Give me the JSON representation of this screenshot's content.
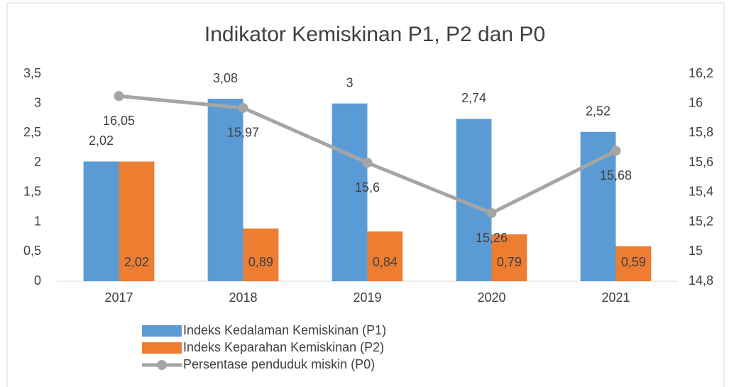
{
  "chart_data": {
    "type": "bar_line",
    "title": "Indikator Kemiskinan P1, P2 dan P0",
    "categories": [
      "2017",
      "2018",
      "2019",
      "2020",
      "2021"
    ],
    "series": [
      {
        "name": "Indeks Kedalaman Kemiskinan (P1)",
        "type": "bar",
        "color": "#5b9bd5",
        "values": [
          2.02,
          3.08,
          3,
          2.74,
          2.52
        ],
        "value_labels": [
          "2,02",
          "3,08",
          "3",
          "2,74",
          "2,52"
        ]
      },
      {
        "name": "Indeks Keparahan Kemiskinan (P2)",
        "type": "bar",
        "color": "#ed7d31",
        "values": [
          2.02,
          0.89,
          0.84,
          0.79,
          0.59
        ],
        "value_labels": [
          "2,02",
          "0,89",
          "0,84",
          "0,79",
          "0,59"
        ]
      },
      {
        "name": "Persentase penduduk miskin (P0)",
        "type": "line",
        "axis": "y2",
        "color": "#a5a5a5",
        "values": [
          16.05,
          15.97,
          15.6,
          15.26,
          15.68
        ],
        "value_labels": [
          "16,05",
          "15,97",
          "15,6",
          "15,26",
          "15,68"
        ]
      }
    ],
    "ylim": [
      0,
      3.5
    ],
    "yticks": [
      0,
      {
        "value": 0.5,
        "label": "0,5"
      },
      1,
      {
        "value": 1.5,
        "label": "1,5"
      },
      2,
      {
        "value": 2.5,
        "label": "2,5"
      },
      3,
      {
        "value": 3.5,
        "label": "3,5"
      }
    ],
    "y2lim": [
      14.8,
      16.2
    ],
    "y2ticks": [
      {
        "value": 14.8,
        "label": "14,8"
      },
      15,
      {
        "value": 15.2,
        "label": "15,2"
      },
      {
        "value": 15.4,
        "label": "15,4"
      },
      {
        "value": 15.6,
        "label": "15,6"
      },
      {
        "value": 15.8,
        "label": "15,8"
      },
      16,
      {
        "value": 16.2,
        "label": "16,2"
      }
    ],
    "grid": false,
    "legend": "bottom"
  }
}
